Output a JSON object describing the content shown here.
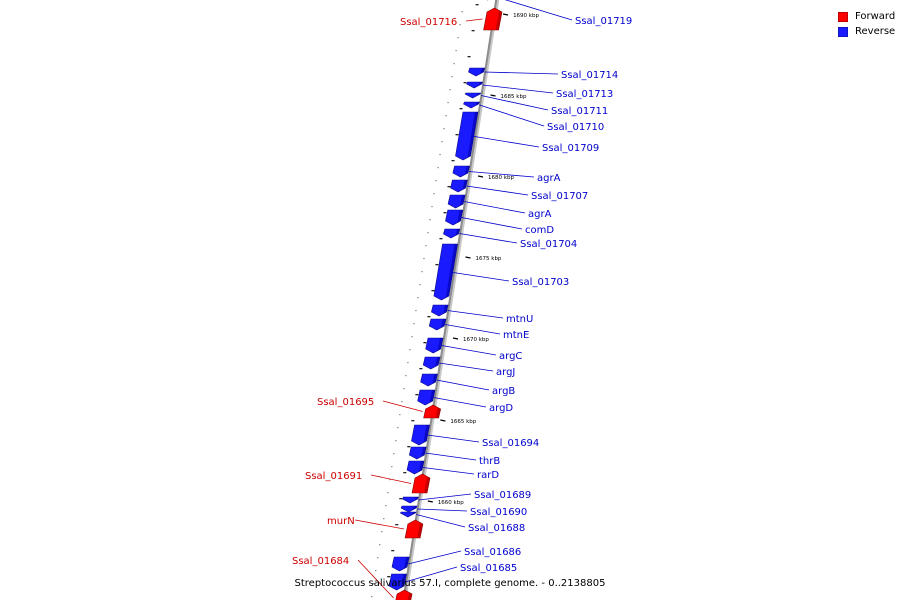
{
  "colors": {
    "forward": "#ff0000",
    "reverse": "#1a1aff",
    "backbone": "#8c8c8c",
    "label_forward": "#cc0000",
    "label_reverse": "#0000cc"
  },
  "legend": {
    "forward_label": "Forward",
    "reverse_label": "Reverse"
  },
  "caption": "Streptococcus salivarius 57.I, complete genome. - 0..2138805",
  "scale_labels": [
    "1690 kbp",
    "1685 kbp",
    "1680 kbp",
    "1675 kbp",
    "1670 kbp",
    "1665 kbp",
    "1660 kbp"
  ],
  "genes": [
    {
      "name": "Ssal_01719",
      "strand": "reverse"
    },
    {
      "name": "Ssal_01716",
      "strand": "forward"
    },
    {
      "name": "Ssal_01714",
      "strand": "reverse"
    },
    {
      "name": "Ssal_01713",
      "strand": "reverse"
    },
    {
      "name": "Ssal_01711",
      "strand": "reverse"
    },
    {
      "name": "Ssal_01710",
      "strand": "reverse"
    },
    {
      "name": "Ssal_01709",
      "strand": "reverse"
    },
    {
      "name": "agrA",
      "strand": "reverse"
    },
    {
      "name": "Ssal_01707",
      "strand": "reverse"
    },
    {
      "name": "agrA",
      "strand": "reverse"
    },
    {
      "name": "comD",
      "strand": "reverse"
    },
    {
      "name": "Ssal_01704",
      "strand": "reverse"
    },
    {
      "name": "Ssal_01703",
      "strand": "reverse"
    },
    {
      "name": "mtnU",
      "strand": "reverse"
    },
    {
      "name": "mtnE",
      "strand": "reverse"
    },
    {
      "name": "argC",
      "strand": "reverse"
    },
    {
      "name": "argJ",
      "strand": "reverse"
    },
    {
      "name": "argB",
      "strand": "reverse"
    },
    {
      "name": "argD",
      "strand": "reverse"
    },
    {
      "name": "Ssal_01695",
      "strand": "forward"
    },
    {
      "name": "Ssal_01694",
      "strand": "reverse"
    },
    {
      "name": "thrB",
      "strand": "reverse"
    },
    {
      "name": "rarD",
      "strand": "reverse"
    },
    {
      "name": "Ssal_01691",
      "strand": "forward"
    },
    {
      "name": "Ssal_01689",
      "strand": "reverse"
    },
    {
      "name": "Ssal_01690",
      "strand": "reverse"
    },
    {
      "name": "Ssal_01688",
      "strand": "reverse"
    },
    {
      "name": "murN",
      "strand": "forward"
    },
    {
      "name": "Ssal_01686",
      "strand": "reverse"
    },
    {
      "name": "Ssal_01685",
      "strand": "reverse"
    },
    {
      "name": "Ssal_01684",
      "strand": "forward"
    }
  ]
}
